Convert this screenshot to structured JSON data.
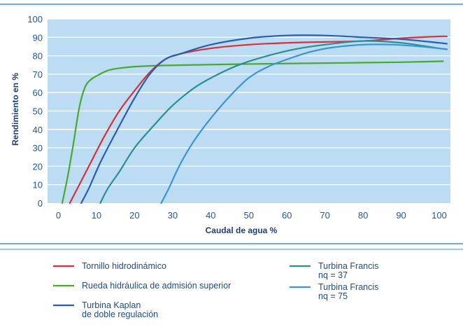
{
  "chart_data": {
    "type": "line",
    "title": "",
    "xlabel": "Caudal de agua %",
    "ylabel": "Rendimiento en %",
    "xlim": [
      0,
      102
    ],
    "ylim": [
      0,
      100
    ],
    "xticks": [
      0,
      10,
      20,
      30,
      40,
      50,
      60,
      70,
      80,
      90,
      100
    ],
    "yticks": [
      0,
      10,
      20,
      30,
      40,
      50,
      60,
      70,
      80,
      90,
      100
    ],
    "grid": true,
    "legend_position": "bottom",
    "series": [
      {
        "name": "Tornillo hidrodinámico",
        "color": "#d9303c",
        "points": [
          [
            3,
            0
          ],
          [
            5,
            8
          ],
          [
            8,
            20
          ],
          [
            12,
            36
          ],
          [
            16,
            50
          ],
          [
            20,
            61
          ],
          [
            24,
            71
          ],
          [
            28,
            78
          ],
          [
            32,
            81
          ],
          [
            40,
            84
          ],
          [
            50,
            86
          ],
          [
            60,
            87
          ],
          [
            70,
            87.5
          ],
          [
            80,
            88
          ],
          [
            90,
            89.5
          ],
          [
            100,
            90.5
          ],
          [
            102,
            90.5
          ]
        ]
      },
      {
        "name": "Rueda hidráulica de admisión superior",
        "color": "#4aa830",
        "points": [
          [
            1,
            0
          ],
          [
            2.5,
            15
          ],
          [
            4,
            33
          ],
          [
            5.5,
            52
          ],
          [
            7,
            63
          ],
          [
            8.5,
            67
          ],
          [
            10,
            69
          ],
          [
            13,
            72
          ],
          [
            17,
            73.5
          ],
          [
            22,
            74.3
          ],
          [
            30,
            74.8
          ],
          [
            50,
            75.5
          ],
          [
            70,
            76
          ],
          [
            90,
            76.5
          ],
          [
            101,
            77
          ]
        ]
      },
      {
        "name": "Turbina Kaplan\nde doble regulación",
        "color": "#2a5db0",
        "points": [
          [
            6,
            0
          ],
          [
            8,
            8
          ],
          [
            11,
            22
          ],
          [
            15,
            38
          ],
          [
            20,
            57
          ],
          [
            24,
            70
          ],
          [
            28,
            78
          ],
          [
            32,
            81
          ],
          [
            40,
            86
          ],
          [
            50,
            89.5
          ],
          [
            60,
            91
          ],
          [
            70,
            91
          ],
          [
            80,
            90
          ],
          [
            90,
            89
          ],
          [
            100,
            87
          ],
          [
            102,
            86.5
          ]
        ]
      },
      {
        "name": "Turbina Francis\nnq = 37",
        "color": "#2a8f8f",
        "points": [
          [
            11,
            0
          ],
          [
            13,
            8
          ],
          [
            16,
            17
          ],
          [
            20,
            30
          ],
          [
            25,
            42
          ],
          [
            30,
            53
          ],
          [
            36,
            63
          ],
          [
            42,
            70
          ],
          [
            48,
            75.5
          ],
          [
            55,
            80
          ],
          [
            62,
            83.5
          ],
          [
            70,
            86
          ],
          [
            80,
            88
          ],
          [
            90,
            87
          ],
          [
            100,
            84
          ],
          [
            102,
            83.5
          ]
        ]
      },
      {
        "name": "Turbina Francis\nnq = 75",
        "color": "#3b94d6",
        "points": [
          [
            27,
            0
          ],
          [
            29,
            8
          ],
          [
            31,
            17
          ],
          [
            33,
            25
          ],
          [
            36,
            35
          ],
          [
            40,
            46
          ],
          [
            45,
            58
          ],
          [
            50,
            68
          ],
          [
            55,
            74
          ],
          [
            60,
            78
          ],
          [
            66,
            82
          ],
          [
            72,
            84.5
          ],
          [
            80,
            86
          ],
          [
            88,
            86
          ],
          [
            95,
            85
          ],
          [
            100,
            84
          ],
          [
            102,
            83.5
          ]
        ]
      }
    ]
  }
}
